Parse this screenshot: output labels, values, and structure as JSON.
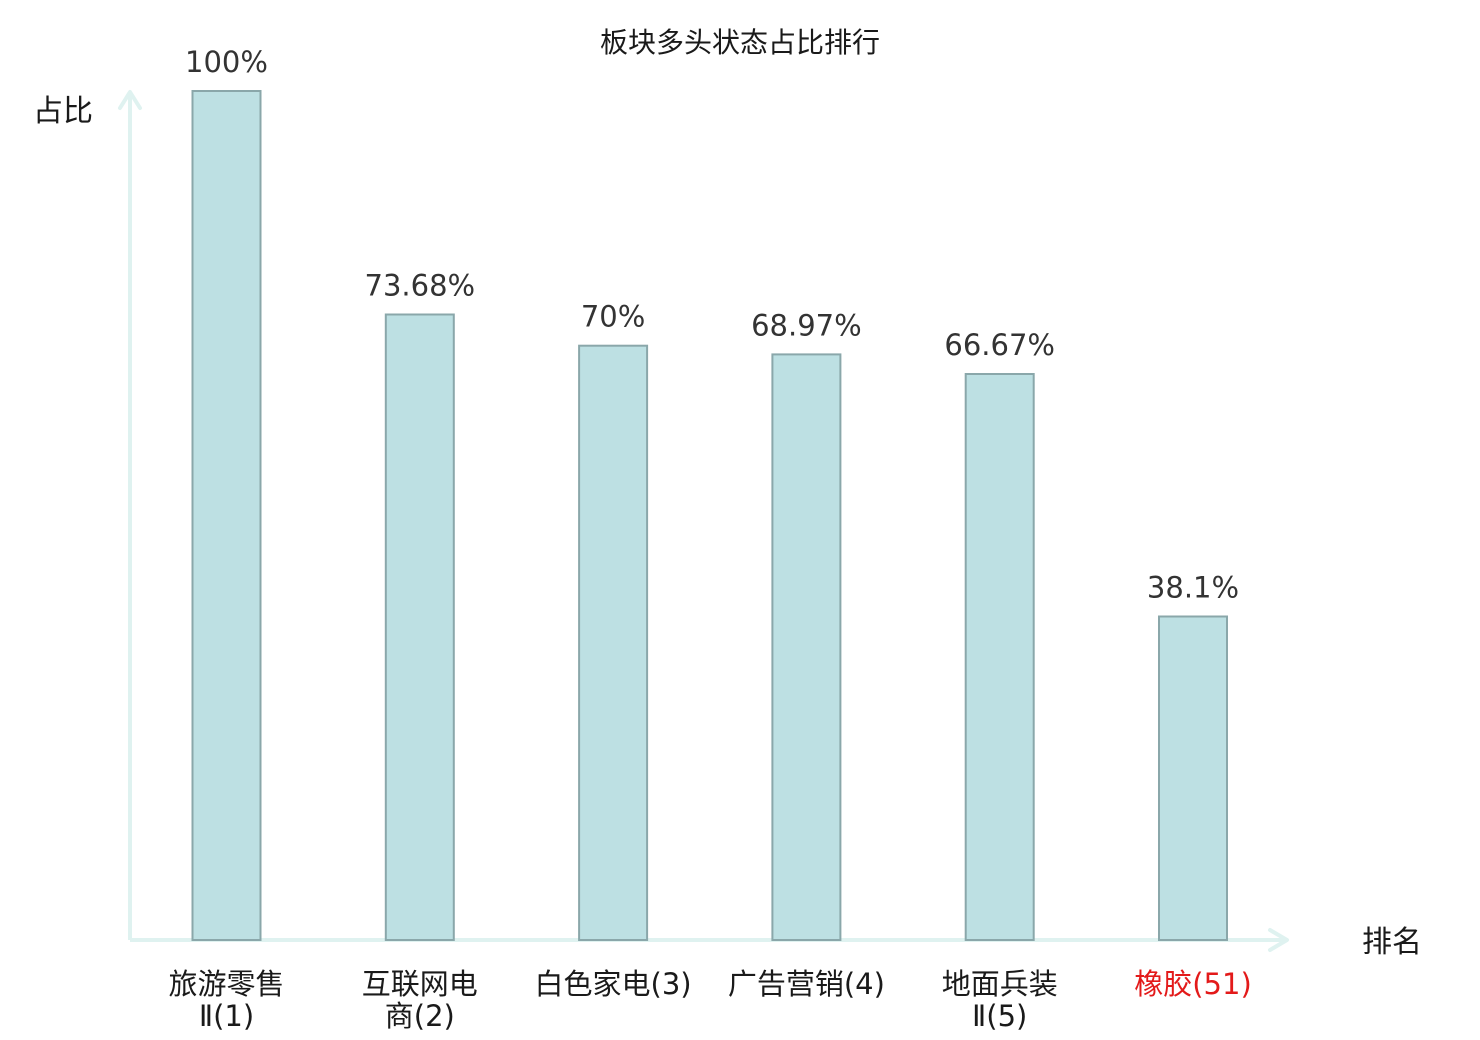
{
  "chart_data": {
    "type": "bar",
    "title": "板块多头状态占比排行",
    "ylabel": "占比",
    "xlabel": "排名",
    "ylim": [
      0,
      100
    ],
    "grid": false,
    "categories": [
      {
        "name": "旅游零售Ⅱ",
        "rank": "(1)",
        "highlight": false
      },
      {
        "name": "互联网电商",
        "rank": "(2)",
        "highlight": false
      },
      {
        "name": "白色家电",
        "rank": "(3)",
        "highlight": false
      },
      {
        "name": "广告营销",
        "rank": "(4)",
        "highlight": false
      },
      {
        "name": "地面兵装Ⅱ",
        "rank": "(5)",
        "highlight": false
      },
      {
        "name": "橡胶",
        "rank": "(51)",
        "highlight": true
      }
    ],
    "category_labels": [
      [
        "旅游零售",
        "Ⅱ(1)"
      ],
      [
        "互联网电",
        "商(2)"
      ],
      [
        "白色家电(3)"
      ],
      [
        "广告营销(4)"
      ],
      [
        "地面兵装",
        "Ⅱ(5)"
      ],
      [
        "橡胶(51)"
      ]
    ],
    "values": [
      100,
      73.68,
      70,
      68.97,
      66.67,
      38.1
    ],
    "value_labels": [
      "100%",
      "73.68%",
      "70%",
      "68.97%",
      "66.67%",
      "38.1%"
    ],
    "colors": {
      "bar_fill": "#bde0e3",
      "bar_stroke": "#8aa7aa",
      "axis": "#dff2f0",
      "highlight_label": "#e31a1a",
      "label": "#1a1a1a",
      "value_label": "#333333"
    }
  }
}
